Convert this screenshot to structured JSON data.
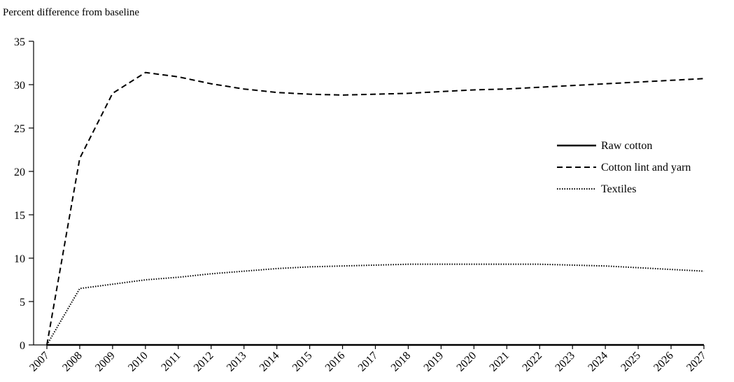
{
  "chart_data": {
    "type": "line",
    "title": "",
    "xlabel": "",
    "ylabel": "Percent difference from baseline",
    "ylim": [
      0,
      35
    ],
    "yticks": [
      0,
      5,
      10,
      15,
      20,
      25,
      30,
      35
    ],
    "grid": false,
    "legend_position": "right",
    "categories": [
      "2007",
      "2008",
      "2009",
      "2010",
      "2011",
      "2012",
      "2013",
      "2014",
      "2015",
      "2016",
      "2017",
      "2018",
      "2019",
      "2020",
      "2021",
      "2022",
      "2023",
      "2024",
      "2025",
      "2026",
      "2027"
    ],
    "series": [
      {
        "name": "Raw cotton",
        "style": "solid",
        "values": [
          0,
          0,
          0,
          0,
          0,
          0,
          0,
          0,
          0,
          0,
          0,
          0,
          0,
          0,
          0,
          0,
          0,
          0,
          0,
          0,
          0
        ]
      },
      {
        "name": "Cotton lint and yarn",
        "style": "dashed",
        "values": [
          0,
          21.5,
          29.0,
          31.4,
          30.9,
          30.1,
          29.5,
          29.1,
          28.9,
          28.8,
          28.9,
          29.0,
          29.2,
          29.4,
          29.5,
          29.7,
          29.9,
          30.1,
          30.3,
          30.5,
          30.7
        ]
      },
      {
        "name": "Textiles",
        "style": "dotted",
        "values": [
          0,
          6.5,
          7.0,
          7.5,
          7.8,
          8.2,
          8.5,
          8.8,
          9.0,
          9.1,
          9.2,
          9.3,
          9.3,
          9.3,
          9.3,
          9.3,
          9.2,
          9.1,
          8.9,
          8.7,
          8.5
        ]
      }
    ]
  }
}
